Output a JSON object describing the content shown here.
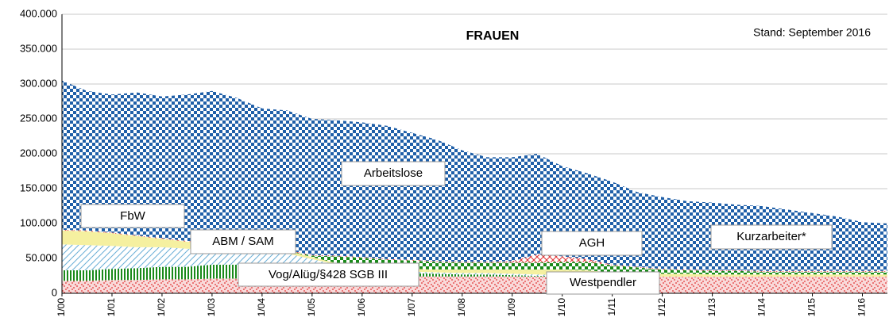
{
  "chart_data": {
    "type": "stacked_area",
    "title": "FRAUEN",
    "annotation": "Stand: September 2016",
    "categories": [
      "1/00",
      null,
      "1/01",
      null,
      "1/02",
      null,
      "1/03",
      null,
      "1/04",
      null,
      "1/05",
      null,
      "1/06",
      null,
      "1/07",
      null,
      "1/08",
      null,
      "1/09",
      null,
      "1/10",
      null,
      "1/11",
      null,
      "1/12",
      null,
      "1/13",
      null,
      "1/14",
      null,
      "1/15",
      null,
      "1/16",
      null
    ],
    "ylim": [
      0,
      400000
    ],
    "yticks": [
      0,
      {
        "value": 50000,
        "label": "50.000"
      },
      {
        "value": 100000,
        "label": "100.000"
      },
      {
        "value": 150000,
        "label": "150.000"
      },
      {
        "value": 200000,
        "label": "200.000"
      },
      {
        "value": 250000,
        "label": "250.000"
      },
      {
        "value": 300000,
        "label": "300.000"
      },
      {
        "value": 350000,
        "label": "350.000"
      },
      {
        "value": 400000,
        "label": "400.000"
      }
    ],
    "grid": true,
    "series": [
      {
        "name": "Westpendler",
        "color": "#e03030",
        "pattern": "dots",
        "values": [
          18000,
          18000,
          19000,
          19000,
          20000,
          20000,
          21000,
          21000,
          22000,
          22000,
          22000,
          23000,
          23000,
          23000,
          24000,
          24000,
          24000,
          24000,
          24000,
          24000,
          24000,
          24000,
          24000,
          24000,
          24000,
          24000,
          24000,
          24000,
          24000,
          24000,
          24000,
          24000,
          24000,
          24000
        ]
      },
      {
        "name": "Vog/Alüg/§428 SGB III",
        "color": "#1a8a1a",
        "pattern": "vstripes",
        "values": [
          15000,
          15000,
          16000,
          17000,
          18000,
          18000,
          20000,
          20000,
          20000,
          20000,
          15000,
          10000,
          8000,
          6000,
          5000,
          4000,
          3000,
          3000,
          2000,
          1000,
          1000,
          0,
          0,
          0,
          0,
          0,
          0,
          0,
          0,
          0,
          0,
          0,
          0,
          0
        ]
      },
      {
        "name": "ABM / SAM",
        "color": "#6aaed6",
        "pattern": "diag",
        "values": [
          37000,
          36000,
          33000,
          30000,
          28000,
          26000,
          22000,
          20000,
          18000,
          15000,
          12000,
          8000,
          5000,
          3000,
          2000,
          2000,
          2000,
          2000,
          2000,
          2000,
          1000,
          1000,
          0,
          0,
          0,
          0,
          0,
          0,
          0,
          0,
          0,
          0,
          0,
          0
        ]
      },
      {
        "name": "FbW",
        "color": "#f5f0a0",
        "pattern": "solid",
        "values": [
          20000,
          20000,
          18000,
          16000,
          12000,
          10000,
          8000,
          7000,
          5000,
          4000,
          3000,
          2000,
          3000,
          3000,
          4000,
          4000,
          5000,
          5000,
          6000,
          7000,
          8000,
          8000,
          6000,
          5000,
          4000,
          4000,
          3000,
          3000,
          3000,
          3000,
          3000,
          3000,
          3000,
          3000
        ]
      },
      {
        "name": "AGH",
        "color": "#1a8a1a",
        "pattern": "checker",
        "values": [
          0,
          0,
          0,
          0,
          0,
          0,
          0,
          0,
          0,
          0,
          2000,
          10000,
          12000,
          13000,
          12000,
          11000,
          10000,
          10000,
          10000,
          10000,
          11000,
          12000,
          10000,
          8000,
          6000,
          5000,
          5000,
          5000,
          4000,
          4000,
          4000,
          4000,
          4000,
          4000
        ]
      },
      {
        "name": "Kurzarbeiter*",
        "color": "#e03030",
        "pattern": "crosshatch",
        "values": [
          1000,
          1000,
          1000,
          1000,
          1000,
          1000,
          2000,
          1000,
          1000,
          1000,
          1000,
          1000,
          1000,
          1000,
          1000,
          1000,
          1000,
          1000,
          2000,
          12000,
          8000,
          4000,
          1000,
          1000,
          1000,
          1000,
          1000,
          1000,
          1000,
          1000,
          1000,
          1000,
          1000,
          1000
        ]
      },
      {
        "name": "Arbeitslose",
        "color": "#1f5fa8",
        "pattern": "checker",
        "values": [
          214000,
          200000,
          198000,
          205000,
          203000,
          210000,
          217000,
          211000,
          199000,
          200000,
          195000,
          194000,
          193000,
          191000,
          182000,
          174000,
          160000,
          150000,
          149000,
          144000,
          129000,
          123000,
          119000,
          107000,
          103000,
          98000,
          97000,
          94000,
          93000,
          88000,
          83000,
          78000,
          70000,
          68000
        ]
      }
    ]
  }
}
